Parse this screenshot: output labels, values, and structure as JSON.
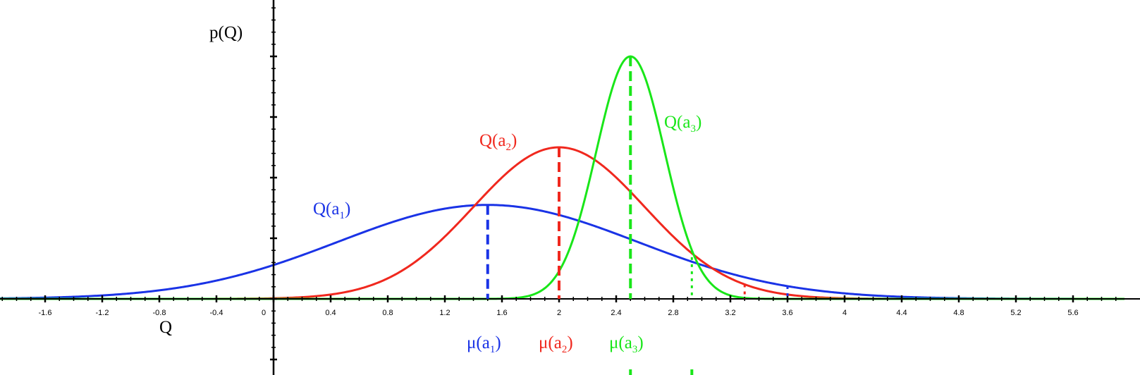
{
  "chart_data": {
    "type": "line",
    "ylabel": "p(Q)",
    "xlabel": "Q",
    "xlim": [
      -1.92,
      5.96
    ],
    "x_ticks": [
      "-1.6",
      "-1.2",
      "-0.8",
      "-0.4",
      "0",
      "0.4",
      "0.8",
      "1.2",
      "1.6",
      "2",
      "2.4",
      "2.8",
      "3.2",
      "3.6",
      "4",
      "4.4",
      "4.8",
      "5.2",
      "5.6"
    ],
    "x_tick_values": [
      -1.6,
      -1.2,
      -0.8,
      -0.4,
      0,
      0.4,
      0.8,
      1.2,
      1.6,
      2,
      2.4,
      2.8,
      3.2,
      3.6,
      4,
      4.4,
      4.8,
      5.2,
      5.6
    ],
    "series": [
      {
        "label": "Q(a",
        "sub": "1",
        "mean_label": "μ(a",
        "mean": 1.5,
        "sd": 1.05,
        "peak": 0.31,
        "color": "#1a33e6",
        "upper_marker": 3.6
      },
      {
        "label": "Q(a",
        "sub": "2",
        "mean_label": "μ(a",
        "mean": 2.0,
        "sd": 0.6,
        "peak": 0.5,
        "color": "#f0281e",
        "upper_marker": 3.3
      },
      {
        "label": "Q(a",
        "sub": "3",
        "mean_label": "μ(a",
        "mean": 2.5,
        "sd": 0.24,
        "peak": 0.8,
        "color": "#19e619",
        "upper_marker": 2.93
      }
    ],
    "label_close": ")"
  }
}
